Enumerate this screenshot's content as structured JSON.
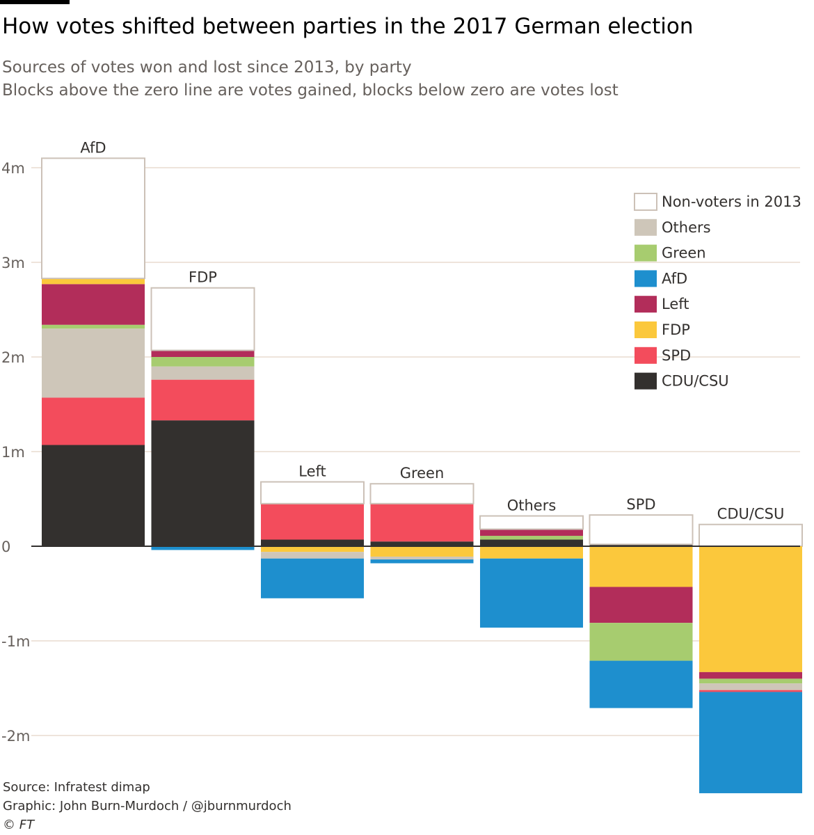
{
  "title": "How votes shifted between parties in the 2017 German election",
  "subtitle_1": "Sources of votes won and lost since 2013, by party",
  "subtitle_2": "Blocks above the zero line are votes gained, blocks below zero are votes lost",
  "source": "Source: Infratest dimap",
  "credit": "Graphic: John Burn-Murdoch / @jburnmurdoch",
  "copyright": "© FT",
  "colors": {
    "Non-voters in 2013": "#ffffff",
    "Others": "#cec6b9",
    "Green": "#a7cc6f",
    "AfD": "#1e8fce",
    "Left": "#b22d5a",
    "FDP": "#fbc83c",
    "SPD": "#f34c5c",
    "CDU/CSU": "#33302e",
    "gridline": "#e9dccf",
    "outline": "#ccc1b7"
  },
  "chart_data": {
    "type": "bar",
    "subtype": "stacked waterfall",
    "unit": "votes (millions)",
    "y_ticks": [
      4,
      3,
      2,
      1,
      0,
      -1,
      -2
    ],
    "y_tick_labels": [
      "4m",
      "3m",
      "2m",
      "1m",
      "0",
      "-1m",
      "-2m"
    ],
    "ylim": [
      -2.6,
      4.3
    ],
    "legend": [
      "Non-voters in 2013",
      "Others",
      "Green",
      "AfD",
      "Left",
      "FDP",
      "SPD",
      "CDU/CSU"
    ],
    "legend_position": "top-right",
    "parties": [
      {
        "name": "AfD",
        "gains": [
          {
            "source": "CDU/CSU",
            "value": 1.07
          },
          {
            "source": "SPD",
            "value": 0.5
          },
          {
            "source": "Others",
            "value": 0.73
          },
          {
            "source": "Green",
            "value": 0.04
          },
          {
            "source": "Left",
            "value": 0.43
          },
          {
            "source": "FDP",
            "value": 0.06
          },
          {
            "source": "Non-voters in 2013",
            "value": 1.27
          }
        ],
        "losses": []
      },
      {
        "name": "FDP",
        "gains": [
          {
            "source": "CDU/CSU",
            "value": 1.33
          },
          {
            "source": "SPD",
            "value": 0.43
          },
          {
            "source": "Others",
            "value": 0.14
          },
          {
            "source": "Green",
            "value": 0.1
          },
          {
            "source": "Left",
            "value": 0.07
          },
          {
            "source": "Non-voters in 2013",
            "value": 0.66
          }
        ],
        "losses": [
          {
            "source": "AfD",
            "value": 0.04
          }
        ]
      },
      {
        "name": "Left",
        "gains": [
          {
            "source": "CDU/CSU",
            "value": 0.07
          },
          {
            "source": "SPD",
            "value": 0.38
          },
          {
            "source": "Non-voters in 2013",
            "value": 0.23
          }
        ],
        "losses": [
          {
            "source": "FDP",
            "value": 0.06
          },
          {
            "source": "Others",
            "value": 0.07
          },
          {
            "source": "AfD",
            "value": 0.42
          }
        ]
      },
      {
        "name": "Green",
        "gains": [
          {
            "source": "CDU/CSU",
            "value": 0.05
          },
          {
            "source": "SPD",
            "value": 0.4
          },
          {
            "source": "Non-voters in 2013",
            "value": 0.21
          }
        ],
        "losses": [
          {
            "source": "FDP",
            "value": 0.11
          },
          {
            "source": "Others",
            "value": 0.03
          },
          {
            "source": "AfD",
            "value": 0.04
          }
        ]
      },
      {
        "name": "Others",
        "gains": [
          {
            "source": "CDU/CSU",
            "value": 0.07
          },
          {
            "source": "Green",
            "value": 0.04
          },
          {
            "source": "Left",
            "value": 0.07
          },
          {
            "source": "Non-voters in 2013",
            "value": 0.14
          }
        ],
        "losses": [
          {
            "source": "FDP",
            "value": 0.13
          },
          {
            "source": "AfD",
            "value": 0.73
          }
        ]
      },
      {
        "name": "SPD",
        "gains": [
          {
            "source": "CDU/CSU",
            "value": 0.02
          },
          {
            "source": "Non-voters in 2013",
            "value": 0.31
          }
        ],
        "losses": [
          {
            "source": "FDP",
            "value": 0.43
          },
          {
            "source": "Left",
            "value": 0.38
          },
          {
            "source": "Green",
            "value": 0.4
          },
          {
            "source": "AfD",
            "value": 0.5
          }
        ]
      },
      {
        "name": "CDU/CSU",
        "gains": [
          {
            "source": "Non-voters in 2013",
            "value": 0.23
          }
        ],
        "losses": [
          {
            "source": "FDP",
            "value": 1.33
          },
          {
            "source": "Left",
            "value": 0.07
          },
          {
            "source": "Green",
            "value": 0.05
          },
          {
            "source": "Others",
            "value": 0.07
          },
          {
            "source": "SPD",
            "value": 0.02
          },
          {
            "source": "AfD",
            "value": 1.07
          }
        ]
      }
    ]
  }
}
